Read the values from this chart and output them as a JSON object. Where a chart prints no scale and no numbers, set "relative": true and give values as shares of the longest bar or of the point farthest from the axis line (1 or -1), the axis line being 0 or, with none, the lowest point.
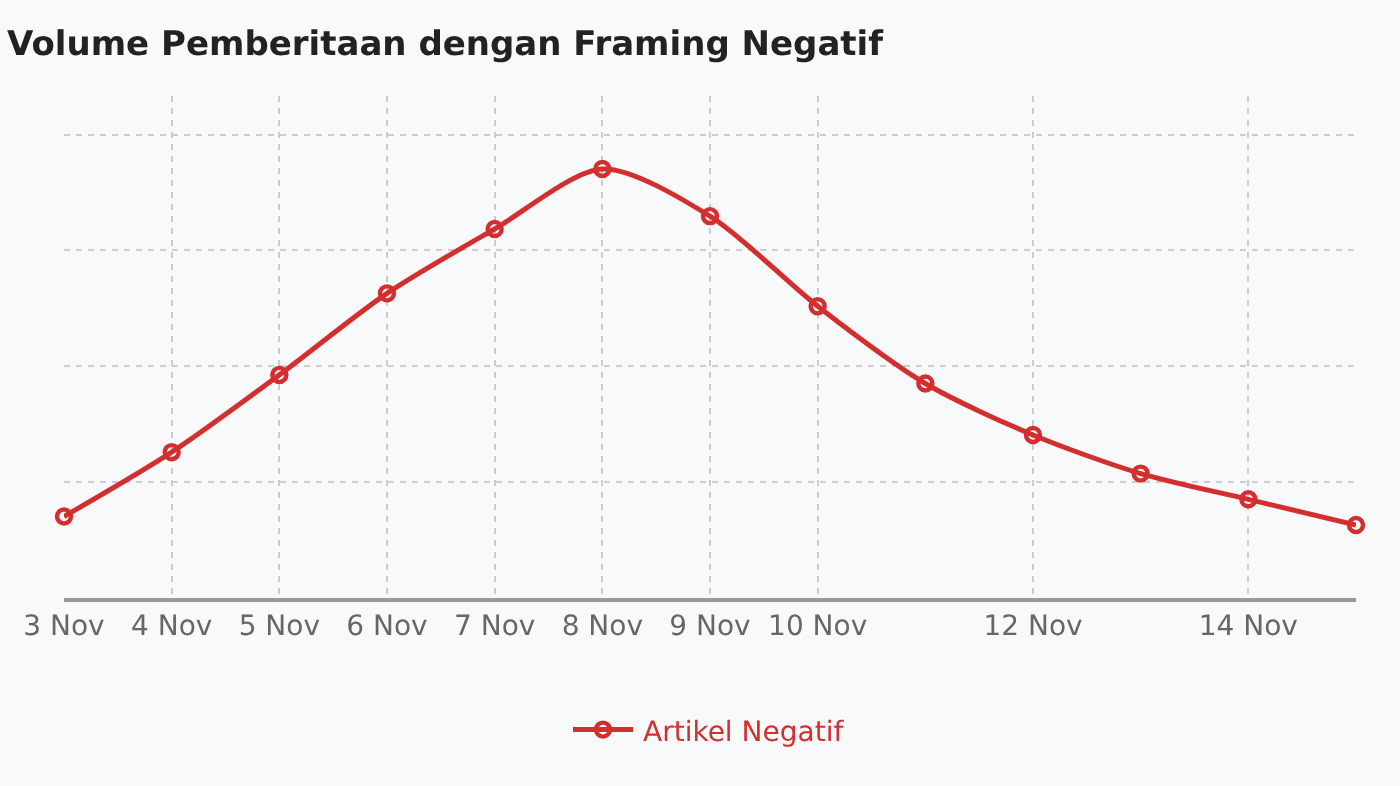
{
  "chart_data": {
    "type": "line",
    "title": "Volume Pemberitaan dengan Framing Negatif",
    "relative": true,
    "x": [
      "--11-03",
      "--11-04",
      "--11-05",
      "--11-06",
      "--11-07",
      "--11-08",
      "--11-09",
      "--11-10",
      "--11-11",
      "--11-12",
      "--11-13",
      "--11-14",
      "--11-15"
    ],
    "series": [
      {
        "name": "Artikel Negatif",
        "color": "#d32f2f",
        "values": [
          0.19,
          0.34,
          0.52,
          0.71,
          0.86,
          1,
          0.89,
          0.68,
          0.5,
          0.38,
          0.29,
          0.23,
          0.17
        ]
      }
    ],
    "xlim": [
      "--11-03",
      "--11-15"
    ],
    "xticks": [
      {
        "value": "--11-03",
        "label": "3 Nov"
      },
      {
        "value": "--11-04",
        "label": "4 Nov"
      },
      {
        "value": "--11-05",
        "label": "5 Nov"
      },
      {
        "value": "--11-06",
        "label": "6 Nov"
      },
      {
        "value": "--11-07",
        "label": "7 Nov"
      },
      {
        "value": "--11-08",
        "label": "8 Nov"
      },
      {
        "value": "--11-09",
        "label": "9 Nov"
      },
      {
        "value": "--11-10",
        "label": "10 Nov"
      },
      {
        "value": "--11-12",
        "label": "12 Nov"
      },
      {
        "value": "--11-14",
        "label": "14 Nov"
      }
    ],
    "grid": true,
    "legend": "bottom",
    "marker": "circle",
    "line_style": "solid"
  }
}
